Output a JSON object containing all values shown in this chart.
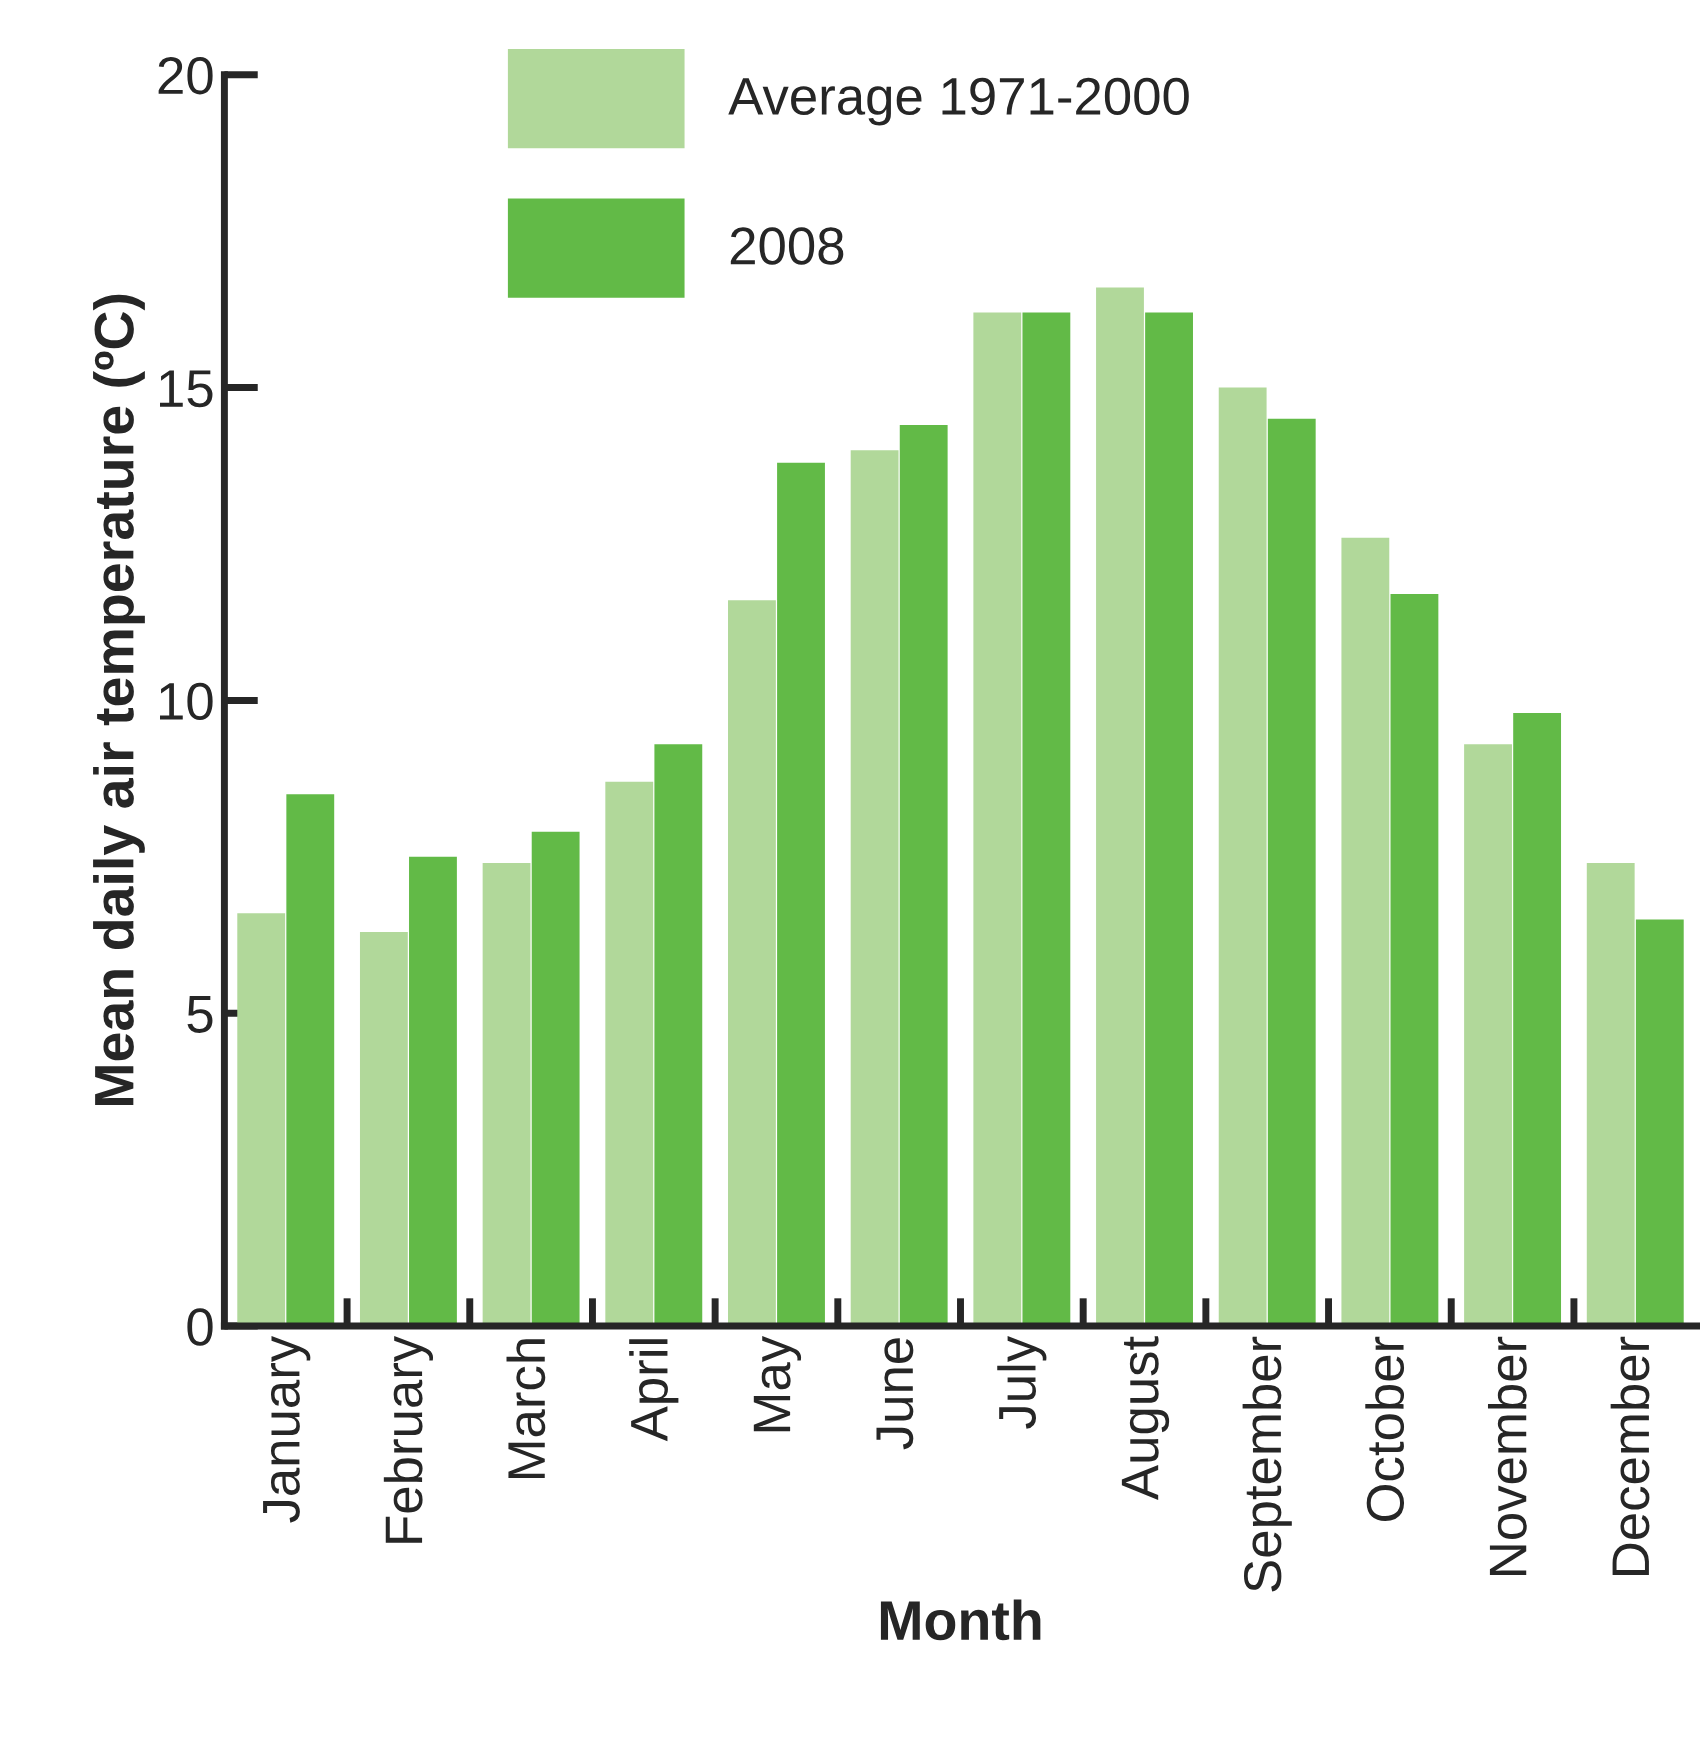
{
  "chart_data": {
    "type": "bar",
    "xlabel": "Month",
    "ylabel": "Mean daily air temperature (ºC)",
    "categories": [
      "January",
      "February",
      "March",
      "April",
      "May",
      "June",
      "July",
      "August",
      "September",
      "October",
      "November",
      "December"
    ],
    "series": [
      {
        "name": "Average 1971-2000",
        "color": "#b1d89a",
        "values": [
          6.6,
          6.3,
          7.4,
          8.7,
          11.6,
          14.0,
          16.2,
          16.6,
          15.0,
          12.6,
          9.3,
          7.4
        ]
      },
      {
        "name": "2008",
        "color": "#62ba47",
        "values": [
          8.5,
          7.5,
          7.9,
          9.3,
          13.8,
          14.4,
          16.2,
          16.2,
          14.5,
          11.7,
          9.8,
          6.5
        ]
      }
    ],
    "ylim": [
      0,
      20
    ],
    "yticks": [
      0,
      5,
      10,
      15,
      20
    ],
    "grid": false,
    "legend": "top"
  }
}
